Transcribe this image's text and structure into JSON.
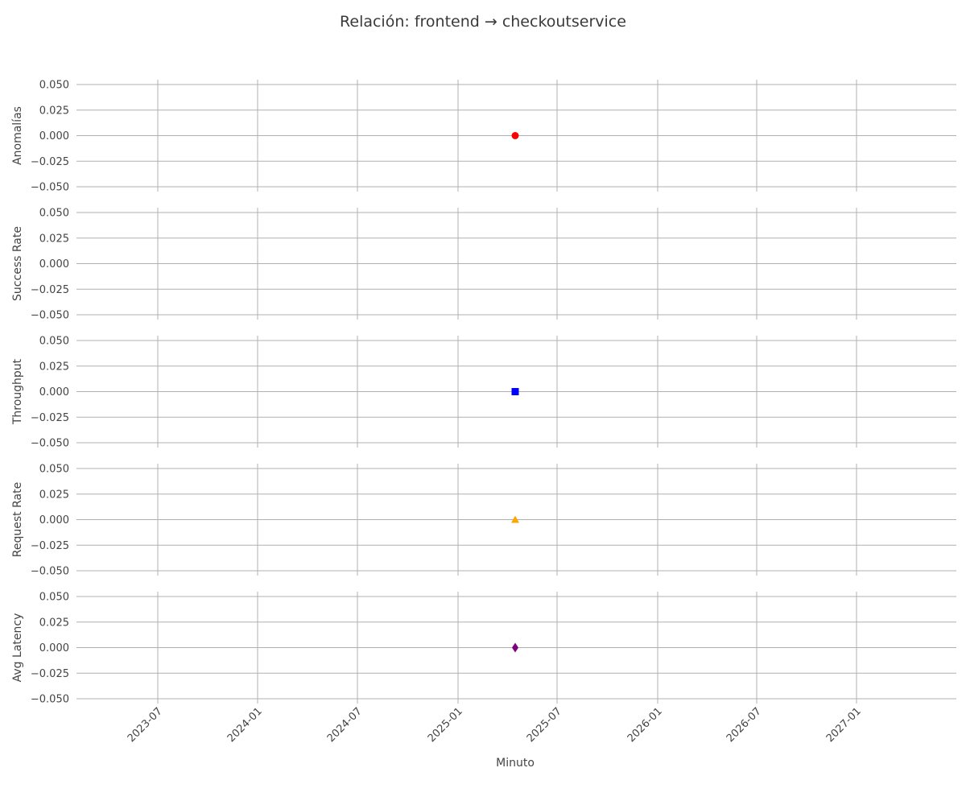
{
  "chart_data": {
    "type": "scatter",
    "title": "Relación: frontend → checkoutservice",
    "xlabel": "Minuto",
    "x_ticks": [
      "2023-07",
      "2024-01",
      "2024-07",
      "2025-01",
      "2025-07",
      "2026-01",
      "2026-07",
      "2027-01"
    ],
    "ylim": [
      -0.05,
      0.05
    ],
    "y_ticks": [
      "0.050",
      "0.025",
      "0.000",
      "−0.025",
      "−0.050"
    ],
    "grid": true,
    "panels": [
      {
        "ylabel": "Anomalías",
        "marker": "circle",
        "color": "#ff0000",
        "points": [
          {
            "x": "2025-04",
            "y": 0
          }
        ]
      },
      {
        "ylabel": "Success Rate",
        "marker": "none",
        "color": "#000000",
        "points": []
      },
      {
        "ylabel": "Throughput",
        "marker": "square",
        "color": "#0000ff",
        "points": [
          {
            "x": "2025-04",
            "y": 0
          }
        ]
      },
      {
        "ylabel": "Request Rate",
        "marker": "triangle",
        "color": "#ffa500",
        "points": [
          {
            "x": "2025-04",
            "y": 0
          }
        ]
      },
      {
        "ylabel": "Avg Latency",
        "marker": "diamond",
        "color": "#800080",
        "points": [
          {
            "x": "2025-04",
            "y": 0
          }
        ]
      }
    ]
  }
}
